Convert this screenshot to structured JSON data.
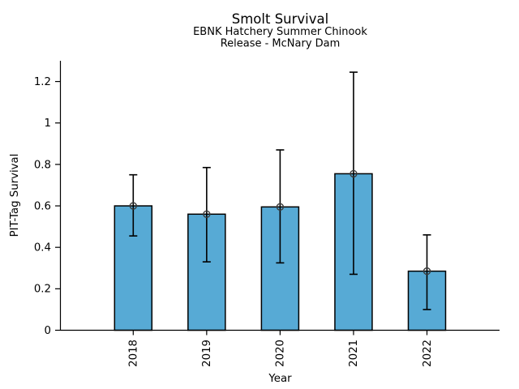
{
  "chart_data": {
    "type": "bar",
    "title": "Smolt Survival",
    "subtitle_lines": [
      "EBNK Hatchery Summer Chinook",
      "Release - McNary Dam"
    ],
    "xlabel": "Year",
    "ylabel": "PIT-Tag Survival",
    "categories": [
      "2018",
      "2019",
      "2020",
      "2021",
      "2022"
    ],
    "values": [
      0.6,
      0.56,
      0.595,
      0.755,
      0.285
    ],
    "error_low": [
      0.455,
      0.33,
      0.325,
      0.27,
      0.1
    ],
    "error_high": [
      0.75,
      0.785,
      0.87,
      1.245,
      0.46
    ],
    "ylim": [
      0,
      1.3
    ],
    "yticks": [
      0,
      0.2,
      0.4,
      0.6,
      0.8,
      1,
      1.2
    ],
    "ytick_labels": [
      "0",
      "0.2",
      "0.4",
      "0.6",
      "0.8",
      "1",
      "1.2"
    ],
    "grid": false,
    "legend": null,
    "marker": "open-circle",
    "colors": {
      "bar_fill": "#57AAD5",
      "bar_edge": "#000000",
      "error_bar": "#000000",
      "marker_ring": "#3a3a3a",
      "axis": "#000000",
      "text": "#000000"
    }
  }
}
